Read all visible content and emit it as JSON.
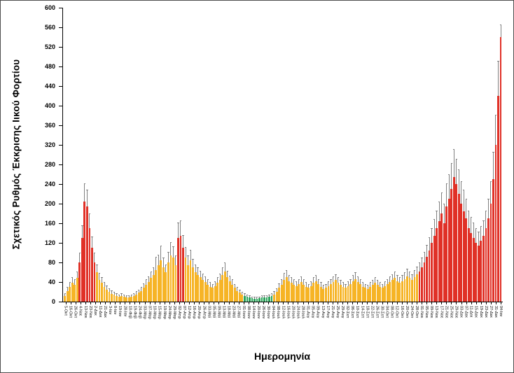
{
  "chart_data": {
    "type": "bar",
    "title": "",
    "ylabel": "Σχετικός Ρυθμός Έκκρισης Ιικού Φορτίου",
    "xlabel": "Ημερομηνία",
    "ylim": [
      0,
      600
    ],
    "ytick_step": 40,
    "grid": false,
    "legend": "none",
    "colors": {
      "r": "#e03127",
      "o": "#f6b426",
      "g": "#2aa45a",
      "error": "#808080"
    },
    "x_tick_labels": [
      "5-Οκτ",
      "16-Οκτ",
      "26-Οκτ",
      "4-Νοε",
      "13-Νοε",
      "23-Νοε",
      "2-Δεκ",
      "11-Δεκ",
      "21-Δεκ",
      "3-Ιαν",
      "8-Ιαν",
      "19-Ιαν",
      "28-Ιαν",
      "10-Φεβ",
      "19-Φεβ",
      "24-Φεβ",
      "03-Μαρ",
      "07-Μαρ",
      "10-Μαρ",
      "15-Μαρ",
      "19-Μαρ",
      "24-Μαρ",
      "29-Μαρ",
      "02-Απρ",
      "07-Απρ",
      "12-Απρ",
      "16-Απρ",
      "20-Απρ",
      "26-Απρ",
      "03-Μαϊ",
      "05-Μαϊ",
      "09-Μαϊ",
      "13-Μαϊ",
      "18-Μαϊ",
      "23-Μαϊ",
      "27-Μαϊ",
      "01-Ιουν",
      "08-Ιουν",
      "14-Ιουν",
      "20-Ιουν",
      "26-Ιουν",
      "30-Ιουν",
      "04-Ιουλ",
      "08-Ιουλ",
      "12-Ιουλ",
      "16-Ιουλ",
      "20-Ιουλ",
      "24-Ιουλ",
      "28-Ιουλ",
      "01-Αυγ",
      "05-Αυγ",
      "09-Αυγ",
      "13-Αυγ",
      "17-Αυγ",
      "21-Αυγ",
      "25-Αυγ",
      "29-Αυγ",
      "02-Σεπ",
      "06-Σεπ",
      "10-Σεπ",
      "14-Σεπ",
      "18-Σεπ",
      "22-Σεπ",
      "26-Σεπ",
      "30-Σεπ",
      "04-Οκτ",
      "08-Οκτ",
      "12-Οκτ",
      "16-Οκτ",
      "20-Οκτ",
      "24-Οκτ",
      "28-Οκτ",
      "01-Νοε",
      "05-Νοε",
      "09-Νοε",
      "13-Νοε",
      "17-Νοε",
      "21-Νοε",
      "25-Νοε",
      "29-Νοε",
      "03-Δεκ",
      "07-Δεκ",
      "11-Δεκ",
      "15-Δεκ",
      "19-Δεκ",
      "23-Δεκ",
      "27-Δεκ",
      "31-Δεκ",
      "04-Ιαν"
    ],
    "bars_note": "each bar = [value, upper_error, color_code]; 2 bars per x tick label",
    "bars": [
      [
        12,
        4,
        "o"
      ],
      [
        22,
        6,
        "o"
      ],
      [
        30,
        8,
        "o"
      ],
      [
        38,
        10,
        "o"
      ],
      [
        35,
        9,
        "o"
      ],
      [
        48,
        12,
        "o"
      ],
      [
        80,
        18,
        "r"
      ],
      [
        130,
        25,
        "r"
      ],
      [
        205,
        35,
        "r"
      ],
      [
        195,
        32,
        "r"
      ],
      [
        150,
        28,
        "r"
      ],
      [
        110,
        22,
        "r"
      ],
      [
        80,
        18,
        "r"
      ],
      [
        60,
        14,
        "o"
      ],
      [
        45,
        12,
        "o"
      ],
      [
        38,
        10,
        "o"
      ],
      [
        30,
        8,
        "o"
      ],
      [
        25,
        7,
        "o"
      ],
      [
        20,
        6,
        "o"
      ],
      [
        16,
        5,
        "o"
      ],
      [
        14,
        4,
        "o"
      ],
      [
        12,
        4,
        "o"
      ],
      [
        10,
        3,
        "o"
      ],
      [
        12,
        4,
        "o"
      ],
      [
        10,
        3,
        "o"
      ],
      [
        8,
        3,
        "o"
      ],
      [
        8,
        3,
        "o"
      ],
      [
        10,
        3,
        "o"
      ],
      [
        12,
        4,
        "o"
      ],
      [
        15,
        5,
        "o"
      ],
      [
        18,
        5,
        "o"
      ],
      [
        22,
        6,
        "o"
      ],
      [
        28,
        8,
        "o"
      ],
      [
        35,
        9,
        "o"
      ],
      [
        40,
        10,
        "o"
      ],
      [
        48,
        12,
        "o"
      ],
      [
        55,
        14,
        "o"
      ],
      [
        65,
        25,
        "o"
      ],
      [
        75,
        20,
        "o"
      ],
      [
        85,
        28,
        "o"
      ],
      [
        70,
        18,
        "o"
      ],
      [
        60,
        15,
        "o"
      ],
      [
        80,
        20,
        "o"
      ],
      [
        95,
        25,
        "o"
      ],
      [
        90,
        22,
        "o"
      ],
      [
        75,
        18,
        "o"
      ],
      [
        130,
        30,
        "r"
      ],
      [
        135,
        30,
        "r"
      ],
      [
        110,
        25,
        "r"
      ],
      [
        90,
        20,
        "o"
      ],
      [
        75,
        18,
        "o"
      ],
      [
        85,
        20,
        "o"
      ],
      [
        70,
        16,
        "o"
      ],
      [
        60,
        14,
        "o"
      ],
      [
        55,
        13,
        "o"
      ],
      [
        50,
        12,
        "o"
      ],
      [
        45,
        11,
        "o"
      ],
      [
        40,
        10,
        "o"
      ],
      [
        35,
        9,
        "o"
      ],
      [
        30,
        8,
        "o"
      ],
      [
        28,
        7,
        "o"
      ],
      [
        32,
        8,
        "o"
      ],
      [
        38,
        10,
        "o"
      ],
      [
        45,
        11,
        "o"
      ],
      [
        55,
        14,
        "o"
      ],
      [
        62,
        16,
        "o"
      ],
      [
        50,
        12,
        "o"
      ],
      [
        42,
        10,
        "o"
      ],
      [
        35,
        9,
        "o"
      ],
      [
        28,
        7,
        "o"
      ],
      [
        22,
        6,
        "o"
      ],
      [
        18,
        5,
        "o"
      ],
      [
        15,
        4,
        "o"
      ],
      [
        12,
        4,
        "g"
      ],
      [
        10,
        3,
        "g"
      ],
      [
        8,
        3,
        "g"
      ],
      [
        7,
        2,
        "g"
      ],
      [
        6,
        2,
        "g"
      ],
      [
        6,
        2,
        "g"
      ],
      [
        7,
        2,
        "g"
      ],
      [
        8,
        3,
        "g"
      ],
      [
        8,
        3,
        "g"
      ],
      [
        9,
        3,
        "g"
      ],
      [
        10,
        3,
        "g"
      ],
      [
        12,
        4,
        "g"
      ],
      [
        15,
        5,
        "o"
      ],
      [
        20,
        6,
        "o"
      ],
      [
        28,
        8,
        "o"
      ],
      [
        35,
        9,
        "o"
      ],
      [
        45,
        12,
        "o"
      ],
      [
        50,
        13,
        "o"
      ],
      [
        42,
        11,
        "o"
      ],
      [
        38,
        10,
        "o"
      ],
      [
        35,
        9,
        "o"
      ],
      [
        32,
        8,
        "o"
      ],
      [
        36,
        9,
        "o"
      ],
      [
        40,
        10,
        "o"
      ],
      [
        35,
        9,
        "o"
      ],
      [
        30,
        8,
        "o"
      ],
      [
        28,
        7,
        "o"
      ],
      [
        32,
        8,
        "o"
      ],
      [
        38,
        10,
        "o"
      ],
      [
        42,
        11,
        "o"
      ],
      [
        36,
        9,
        "o"
      ],
      [
        30,
        8,
        "o"
      ],
      [
        26,
        7,
        "o"
      ],
      [
        28,
        7,
        "o"
      ],
      [
        32,
        8,
        "o"
      ],
      [
        36,
        9,
        "o"
      ],
      [
        40,
        10,
        "o"
      ],
      [
        44,
        11,
        "o"
      ],
      [
        38,
        10,
        "o"
      ],
      [
        34,
        9,
        "o"
      ],
      [
        30,
        8,
        "o"
      ],
      [
        28,
        7,
        "o"
      ],
      [
        32,
        8,
        "o"
      ],
      [
        36,
        9,
        "o"
      ],
      [
        42,
        11,
        "o"
      ],
      [
        46,
        12,
        "o"
      ],
      [
        40,
        10,
        "o"
      ],
      [
        36,
        9,
        "o"
      ],
      [
        30,
        8,
        "o"
      ],
      [
        28,
        7,
        "o"
      ],
      [
        26,
        7,
        "o"
      ],
      [
        30,
        8,
        "o"
      ],
      [
        34,
        9,
        "o"
      ],
      [
        38,
        10,
        "o"
      ],
      [
        34,
        9,
        "o"
      ],
      [
        30,
        8,
        "o"
      ],
      [
        28,
        7,
        "o"
      ],
      [
        32,
        8,
        "o"
      ],
      [
        36,
        9,
        "o"
      ],
      [
        40,
        10,
        "o"
      ],
      [
        44,
        11,
        "o"
      ],
      [
        48,
        12,
        "o"
      ],
      [
        42,
        11,
        "o"
      ],
      [
        38,
        10,
        "o"
      ],
      [
        42,
        11,
        "o"
      ],
      [
        46,
        12,
        "o"
      ],
      [
        52,
        14,
        "o"
      ],
      [
        48,
        12,
        "o"
      ],
      [
        44,
        11,
        "o"
      ],
      [
        50,
        13,
        "o"
      ],
      [
        56,
        14,
        "o"
      ],
      [
        62,
        16,
        "r"
      ],
      [
        70,
        18,
        "r"
      ],
      [
        80,
        20,
        "r"
      ],
      [
        92,
        22,
        "r"
      ],
      [
        105,
        25,
        "r"
      ],
      [
        120,
        28,
        "r"
      ],
      [
        135,
        32,
        "r"
      ],
      [
        150,
        35,
        "r"
      ],
      [
        165,
        38,
        "r"
      ],
      [
        180,
        42,
        "r"
      ],
      [
        160,
        38,
        "r"
      ],
      [
        195,
        45,
        "r"
      ],
      [
        210,
        48,
        "r"
      ],
      [
        230,
        52,
        "r"
      ],
      [
        255,
        55,
        "r"
      ],
      [
        240,
        50,
        "r"
      ],
      [
        220,
        48,
        "r"
      ],
      [
        200,
        45,
        "r"
      ],
      [
        185,
        42,
        "r"
      ],
      [
        170,
        38,
        "r"
      ],
      [
        150,
        35,
        "r"
      ],
      [
        140,
        32,
        "r"
      ],
      [
        130,
        30,
        "r"
      ],
      [
        120,
        28,
        "r"
      ],
      [
        115,
        26,
        "r"
      ],
      [
        125,
        28,
        "r"
      ],
      [
        135,
        30,
        "r"
      ],
      [
        150,
        34,
        "r"
      ],
      [
        170,
        38,
        "r"
      ],
      [
        200,
        45,
        "r"
      ],
      [
        250,
        55,
        "r"
      ],
      [
        320,
        60,
        "r"
      ],
      [
        420,
        70,
        "r"
      ],
      [
        540,
        25,
        "r"
      ]
    ]
  }
}
